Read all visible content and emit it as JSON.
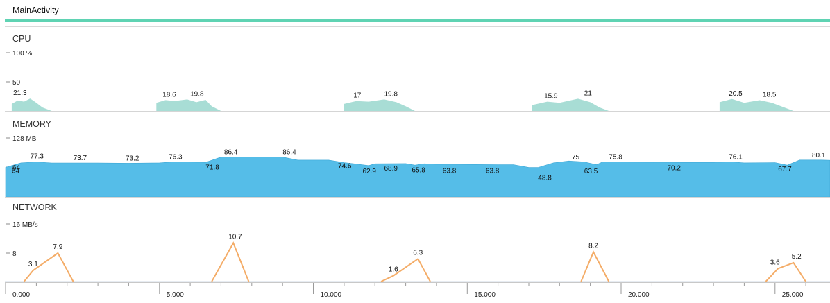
{
  "activity": {
    "name": "MainActivity"
  },
  "colors": {
    "cpu": "#a8ddd5",
    "memory": "#55bde8",
    "network": "#f4ac67",
    "accent": "#5fd3b3"
  },
  "sections": {
    "cpu": {
      "title": "CPU",
      "max_label": "100 %",
      "mid_label": "50"
    },
    "memory": {
      "title": "MEMORY",
      "max_label": "128 MB",
      "mid_label": "64"
    },
    "network": {
      "title": "NETWORK",
      "max_label": "16 MB/s",
      "mid_label": "8"
    }
  },
  "time_axis": {
    "ticks": [
      "0.000",
      "5.000",
      "10.000",
      "15.000",
      "20.000",
      "25.000"
    ]
  },
  "chart_data": [
    {
      "type": "area",
      "name": "cpu",
      "ylim": [
        0,
        100
      ],
      "unit": "%",
      "bursts": [
        {
          "t": [
            0.2,
            0.4,
            0.6,
            0.8,
            1.0,
            1.2
          ],
          "v": [
            12,
            18,
            16,
            21.3,
            14,
            6
          ]
        },
        {
          "t": [
            4.9,
            5.2,
            5.5,
            5.9,
            6.2,
            6.5,
            6.7
          ],
          "v": [
            14,
            18.6,
            17,
            19.8,
            15,
            19,
            8
          ]
        },
        {
          "t": [
            11.0,
            11.4,
            11.8,
            12.3,
            12.7,
            13.0
          ],
          "v": [
            12,
            17,
            16,
            19.8,
            15,
            8
          ]
        },
        {
          "t": [
            17.1,
            17.6,
            18.0,
            18.6,
            19.0,
            19.3
          ],
          "v": [
            10,
            15.9,
            14,
            21,
            15,
            6
          ]
        },
        {
          "t": [
            23.2,
            23.6,
            24.0,
            24.5,
            24.9,
            25.3
          ],
          "v": [
            15,
            20.5,
            14,
            18.5,
            14,
            6
          ]
        }
      ],
      "labels": [
        {
          "t": 0.25,
          "v": 21.3,
          "text": "21.3"
        },
        {
          "t": 5.1,
          "v": 18.6,
          "text": "18.6"
        },
        {
          "t": 6.0,
          "v": 19.8,
          "text": "19.8"
        },
        {
          "t": 11.3,
          "v": 17,
          "text": "17"
        },
        {
          "t": 12.3,
          "v": 19.8,
          "text": "19.8"
        },
        {
          "t": 17.5,
          "v": 15.9,
          "text": "15.9"
        },
        {
          "t": 18.8,
          "v": 21,
          "text": "21"
        },
        {
          "t": 23.5,
          "v": 20.5,
          "text": "20.5"
        },
        {
          "t": 24.6,
          "v": 18.5,
          "text": "18.5"
        }
      ]
    },
    {
      "type": "area",
      "name": "memory",
      "ylim": [
        0,
        128
      ],
      "unit": "MB",
      "points": [
        [
          0,
          64
        ],
        [
          0.5,
          74
        ],
        [
          1.0,
          76
        ],
        [
          1.5,
          73.7
        ],
        [
          3.0,
          73.7
        ],
        [
          4.0,
          73.2
        ],
        [
          5.0,
          74
        ],
        [
          5.5,
          76.3
        ],
        [
          6.5,
          75
        ],
        [
          7.0,
          86.4
        ],
        [
          9.0,
          86.4
        ],
        [
          9.5,
          80
        ],
        [
          10.5,
          80
        ],
        [
          11.0,
          74.6
        ],
        [
          11.8,
          68
        ],
        [
          12.0,
          72
        ],
        [
          13.0,
          72.5
        ],
        [
          13.3,
          68.9
        ],
        [
          13.6,
          72
        ],
        [
          14.0,
          71
        ],
        [
          16.0,
          70
        ],
        [
          16.5,
          70
        ],
        [
          17.0,
          63.8
        ],
        [
          17.3,
          63.8
        ],
        [
          17.8,
          74
        ],
        [
          18.3,
          78
        ],
        [
          18.8,
          76
        ],
        [
          19.2,
          70
        ],
        [
          19.4,
          76
        ],
        [
          20.0,
          75.8
        ],
        [
          22.0,
          75
        ],
        [
          23.0,
          75
        ],
        [
          23.6,
          76.1
        ],
        [
          24.0,
          74
        ],
        [
          25.0,
          74.5
        ],
        [
          25.4,
          69
        ],
        [
          25.8,
          80.1
        ],
        [
          26.5,
          80.1
        ],
        [
          26.8,
          79.5
        ]
      ],
      "labels": [
        {
          "t": 0.2,
          "v": 64,
          "text": "64"
        },
        {
          "t": 0.8,
          "v": 77.3,
          "text": "77.3"
        },
        {
          "t": 2.2,
          "v": 73.7,
          "text": "73.7"
        },
        {
          "t": 3.9,
          "v": 73.2,
          "text": "73.2"
        },
        {
          "t": 5.3,
          "v": 76.3,
          "text": "76.3"
        },
        {
          "t": 6.5,
          "v": 71.8,
          "text": "71.8"
        },
        {
          "t": 7.1,
          "v": 86.4,
          "text": "86.4"
        },
        {
          "t": 9.0,
          "v": 86.4,
          "text": "86.4"
        },
        {
          "t": 10.8,
          "v": 74.6,
          "text": "74.6"
        },
        {
          "t": 11.6,
          "v": 62.9,
          "text": "62.9"
        },
        {
          "t": 12.3,
          "v": 68.9,
          "text": "68.9"
        },
        {
          "t": 13.2,
          "v": 65.8,
          "text": "65.8"
        },
        {
          "t": 14.2,
          "v": 63.8,
          "text": "63.8"
        },
        {
          "t": 15.6,
          "v": 63.8,
          "text": "63.8"
        },
        {
          "t": 17.3,
          "v": 48.8,
          "text": "48.8"
        },
        {
          "t": 18.4,
          "v": 75,
          "text": "75"
        },
        {
          "t": 18.8,
          "v": 63.5,
          "text": "63.5"
        },
        {
          "t": 19.6,
          "v": 75.8,
          "text": "75.8"
        },
        {
          "t": 21.5,
          "v": 70.2,
          "text": "70.2"
        },
        {
          "t": 23.5,
          "v": 76.1,
          "text": "76.1"
        },
        {
          "t": 25.1,
          "v": 67.7,
          "text": "67.7"
        },
        {
          "t": 26.2,
          "v": 80.1,
          "text": "80.1"
        }
      ]
    },
    {
      "type": "line",
      "name": "network",
      "ylim": [
        0,
        16
      ],
      "unit": "MB/s",
      "series": [
        {
          "name": "network",
          "points": [
            [
              0.6,
              0
            ],
            [
              0.9,
              3.1
            ],
            [
              1.7,
              7.9
            ],
            [
              2.2,
              0
            ]
          ]
        },
        {
          "name": "network",
          "points": [
            [
              6.7,
              0
            ],
            [
              7.4,
              10.7
            ],
            [
              7.9,
              0
            ]
          ]
        },
        {
          "name": "network",
          "points": [
            [
              12.2,
              0
            ],
            [
              12.6,
              1.6
            ],
            [
              13.4,
              6.3
            ],
            [
              13.8,
              0
            ]
          ]
        },
        {
          "name": "network",
          "points": [
            [
              18.7,
              0
            ],
            [
              19.1,
              8.2
            ],
            [
              19.6,
              0
            ]
          ]
        },
        {
          "name": "network",
          "points": [
            [
              24.7,
              0
            ],
            [
              25.1,
              3.6
            ],
            [
              25.6,
              5.2
            ],
            [
              26.0,
              0
            ]
          ]
        }
      ],
      "labels": [
        {
          "t": 0.9,
          "v": 3.1,
          "text": "3.1"
        },
        {
          "t": 1.7,
          "v": 7.9,
          "text": "7.9"
        },
        {
          "t": 7.4,
          "v": 10.7,
          "text": "10.7"
        },
        {
          "t": 12.6,
          "v": 1.6,
          "text": "1.6"
        },
        {
          "t": 13.4,
          "v": 6.3,
          "text": "6.3"
        },
        {
          "t": 19.1,
          "v": 8.2,
          "text": "8.2"
        },
        {
          "t": 25.0,
          "v": 3.6,
          "text": "3.6"
        },
        {
          "t": 25.7,
          "v": 5.2,
          "text": "5.2"
        }
      ]
    }
  ]
}
